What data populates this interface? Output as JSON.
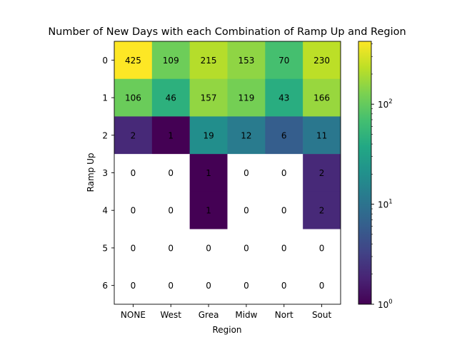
{
  "chart_data": {
    "type": "heatmap",
    "title": "Number of New Days with each Combination of Ramp Up and Region",
    "xlabel": "Region",
    "ylabel": "Ramp Up",
    "x_categories": [
      "NONE",
      "West",
      "Grea",
      "Midw",
      "Nort",
      "Sout"
    ],
    "y_categories": [
      "0",
      "1",
      "2",
      "3",
      "4",
      "5",
      "6"
    ],
    "values": [
      [
        425,
        109,
        215,
        153,
        70,
        230
      ],
      [
        106,
        46,
        157,
        119,
        43,
        166
      ],
      [
        2,
        1,
        19,
        12,
        6,
        11
      ],
      [
        0,
        0,
        1,
        0,
        0,
        2
      ],
      [
        0,
        0,
        1,
        0,
        0,
        2
      ],
      [
        0,
        0,
        0,
        0,
        0,
        0
      ],
      [
        0,
        0,
        0,
        0,
        0,
        0
      ]
    ],
    "colorscale": "viridis",
    "color_scale_type": "log",
    "color_range": [
      1,
      425
    ],
    "zero_cells_color": "#ffffff",
    "colorbar_ticks": [
      {
        "value": 1,
        "base": "10",
        "exp": "0"
      },
      {
        "value": 10,
        "base": "10",
        "exp": "1"
      },
      {
        "value": 100,
        "base": "10",
        "exp": "2"
      }
    ]
  }
}
